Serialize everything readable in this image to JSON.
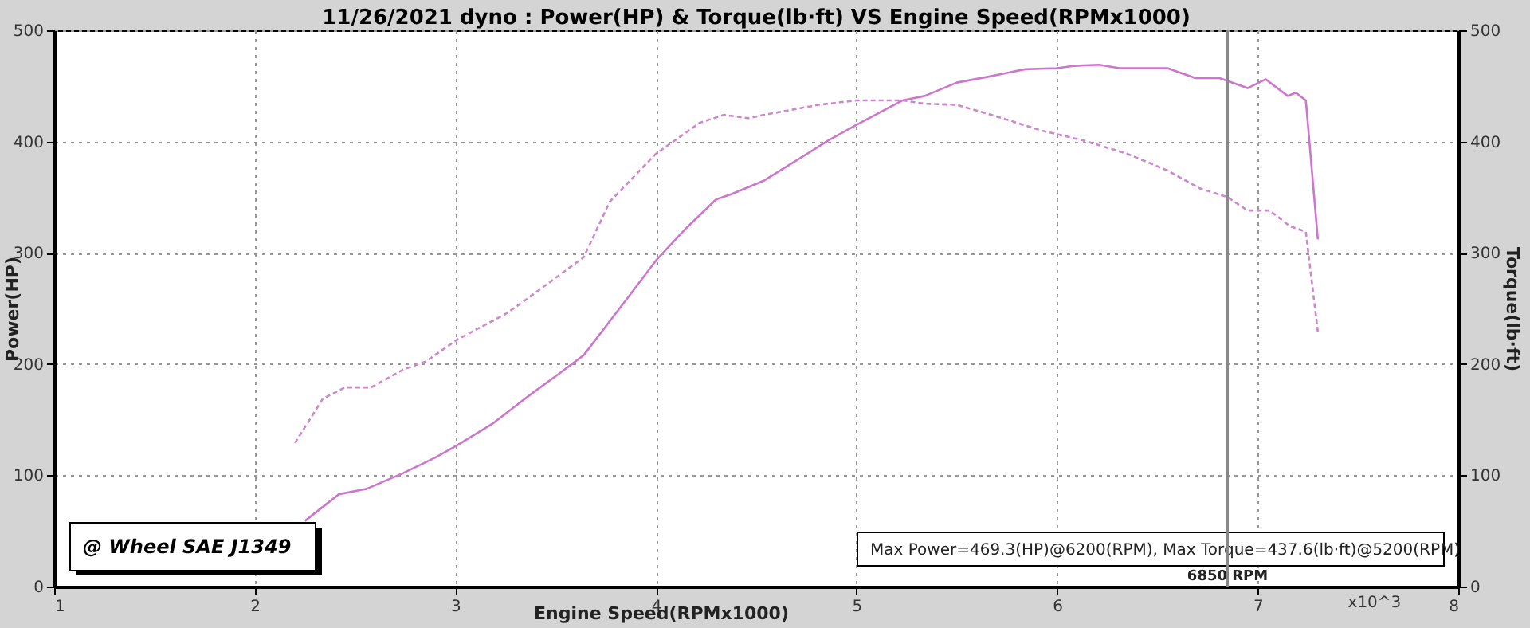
{
  "chart_data": {
    "type": "line",
    "title": "11/26/2021 dyno : Power(HP) & Torque(lb·ft) VS Engine Speed(RPMx1000)",
    "xlabel": "Engine Speed(RPMx1000)",
    "ylabel": "Power(HP)",
    "y2label": "Torque(lb·ft)",
    "xlim": [
      1,
      8
    ],
    "xticks": [
      1,
      2,
      3,
      4,
      5,
      6,
      7,
      8
    ],
    "ylim": [
      0,
      500
    ],
    "yticks": [
      0,
      100,
      200,
      300,
      400,
      500
    ],
    "y2lim": [
      0,
      500
    ],
    "y2ticks": [
      0,
      100,
      200,
      300,
      400,
      500
    ],
    "grid": true,
    "marker": "none",
    "series": [
      {
        "color": "#cc77cc",
        "line_style": "solid",
        "x": [
          2.25,
          2.42,
          2.56,
          2.74,
          2.9,
          3.01,
          3.19,
          3.37,
          3.53,
          3.64,
          3.84,
          4.0,
          4.15,
          4.3,
          4.38,
          4.54,
          4.86,
          5.0,
          5.23,
          5.34,
          5.5,
          5.65,
          5.84,
          6.0,
          6.08,
          6.21,
          6.31,
          6.55,
          6.69,
          6.81,
          6.95,
          7.04,
          7.15,
          7.19,
          7.24,
          7.3
        ],
        "values": [
          59,
          83,
          88,
          102,
          116,
          127,
          147,
          172,
          193,
          208,
          255,
          293,
          322,
          348,
          353,
          365,
          401,
          415,
          437,
          441,
          453,
          458,
          465,
          466,
          468,
          469,
          466,
          466,
          457,
          457,
          448,
          456,
          441,
          444,
          437,
          312
        ]
      },
      {
        "color": "#cc88cc",
        "line_style": "dashed",
        "axis": "y2",
        "x": [
          2.2,
          2.34,
          2.45,
          2.58,
          2.74,
          2.85,
          3.01,
          3.25,
          3.33,
          3.64,
          3.77,
          4.0,
          4.22,
          4.34,
          4.46,
          4.54,
          4.81,
          5.0,
          5.23,
          5.34,
          5.5,
          5.71,
          5.92,
          6.13,
          6.35,
          6.55,
          6.71,
          6.85,
          6.95,
          7.06,
          7.16,
          7.24,
          7.3
        ],
        "values": [
          129,
          169,
          179,
          179,
          195,
          202,
          222,
          245,
          255,
          296,
          346,
          389,
          417,
          424,
          421,
          424,
          433,
          437,
          437,
          434,
          433,
          422,
          410,
          401,
          389,
          374,
          358,
          350,
          338,
          338,
          324,
          319,
          229
        ]
      }
    ],
    "ref_lines": [
      {
        "axis": "x",
        "value": 6.85,
        "label": "6850 RPM",
        "color": "#888888"
      }
    ],
    "annotations": [
      "@ Wheel SAE J1349",
      "Max Power=469.3(HP)@6200(RPM), Max Torque=437.6(lb·ft)@5200(RPM)",
      "x10^3"
    ]
  }
}
